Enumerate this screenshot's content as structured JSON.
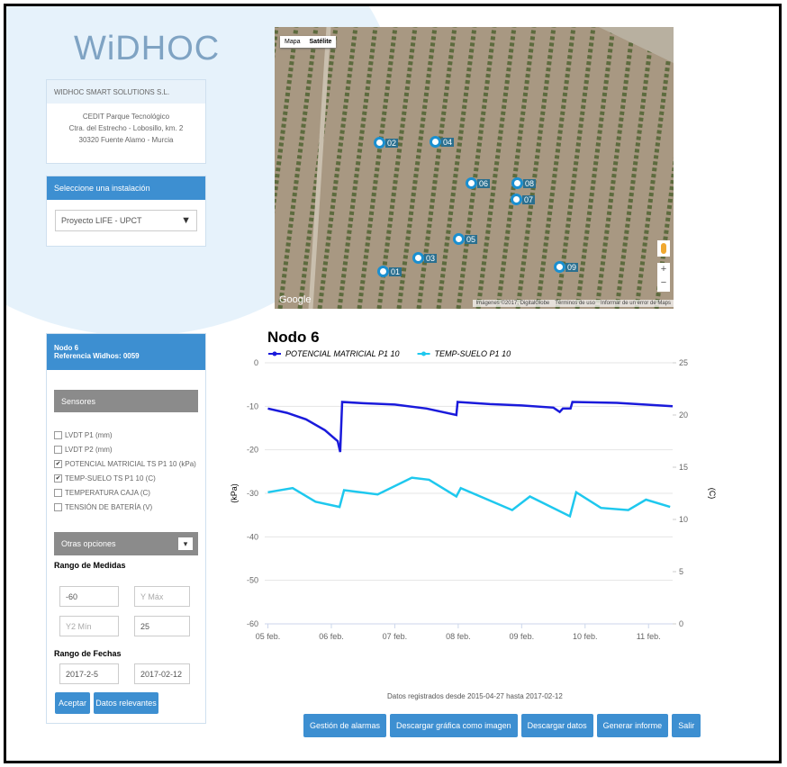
{
  "logo": "WiDHOC",
  "company": {
    "name": "WIDHOC SMART SOLUTIONS S.L.",
    "address": [
      "CEDIT Parque Tecnológico",
      "Ctra. del Estrecho - Lobosillo, km. 2",
      "30320 Fuente Alamo - Murcia"
    ]
  },
  "installation": {
    "header": "Seleccione una instalación",
    "selected": "Proyecto LIFE - UPCT"
  },
  "node": {
    "title": "Nodo 6",
    "reference": "Referencia Widhos: 0059",
    "sensors_header": "Sensores",
    "sensors": [
      {
        "label": "LVDT P1 (mm)",
        "checked": false
      },
      {
        "label": "LVDT P2 (mm)",
        "checked": false
      },
      {
        "label": "POTENCIAL MATRICIAL TS P1 10 (kPa)",
        "checked": true
      },
      {
        "label": "TEMP-SUELO TS P1 10 (C)",
        "checked": true
      },
      {
        "label": "TEMPERATURA CAJA (C)",
        "checked": false
      },
      {
        "label": "TENSIÓN DE BATERÍA (V)",
        "checked": false
      }
    ],
    "options_header": "Otras opciones",
    "range_label": "Rango de Medidas",
    "y_min": "-60",
    "y_max_placeholder": "Y Máx",
    "y2_min_placeholder": "Y2 Mín",
    "y2_max": "25",
    "dates_label": "Rango de Fechas",
    "date_from": "2017-2-5",
    "date_to": "2017-02-12",
    "buttons": [
      "Aceptar",
      "Datos relevantes"
    ]
  },
  "map": {
    "type_buttons": [
      "Mapa",
      "Satélite"
    ],
    "markers": [
      "02",
      "04",
      "06",
      "08",
      "07",
      "05",
      "03",
      "01",
      "09"
    ],
    "google": "Google",
    "attribution": "Imágenes ©2017, DigitalGlobe",
    "terms": "Términos de uso",
    "report": "Informar de un error de Maps",
    "zoom": [
      "+",
      "−"
    ]
  },
  "chart_data": {
    "type": "line",
    "title": "Nodo 6",
    "ylabel": "(kPa)",
    "y2label": "(C)",
    "xlim": [
      -0.05,
      6.38
    ],
    "xticks": [
      {
        "value": 0,
        "label": "05 feb."
      },
      {
        "value": 1,
        "label": "06 feb."
      },
      {
        "value": 2,
        "label": "07 feb."
      },
      {
        "value": 3,
        "label": "08 feb."
      },
      {
        "value": 4,
        "label": "09 feb."
      },
      {
        "value": 5,
        "label": "10 feb."
      },
      {
        "value": 6,
        "label": "11 feb."
      }
    ],
    "ylim": [
      -60,
      0
    ],
    "yticks": [
      0,
      -10,
      -20,
      -30,
      -40,
      -50,
      -60
    ],
    "y2lim": [
      0,
      25
    ],
    "y2ticks": [
      25,
      20,
      15,
      10,
      5,
      0
    ],
    "grid": true,
    "series": [
      {
        "name": "POTENCIAL MATRICIAL P1 10",
        "color": "#1a1adb",
        "x": [
          0,
          0.3,
          0.6,
          0.9,
          1.1,
          1.14,
          1.17,
          1.5,
          2,
          2.5,
          2.97,
          2.99,
          3.5,
          4,
          4.5,
          4.6,
          4.65,
          4.77,
          4.8,
          5.5,
          6.38
        ],
        "values": [
          -10.5,
          -11.5,
          -13,
          -15.5,
          -18,
          -20.5,
          -9,
          -9.3,
          -9.6,
          -10.5,
          -12,
          -9,
          -9.5,
          -9.8,
          -10.3,
          -11.3,
          -10.5,
          -10.5,
          -9,
          -9.2,
          -10
        ]
      },
      {
        "name": "TEMP-SUELO P1 10",
        "color": "#1ec8ee",
        "axis": "y2",
        "x": [
          0,
          0.39,
          0.75,
          1.13,
          1.2,
          1.73,
          2.27,
          2.54,
          2.97,
          3.04,
          3.85,
          4.13,
          4.76,
          4.86,
          5.25,
          5.68,
          5.96,
          6.34
        ],
        "values": [
          12.6,
          13,
          11.7,
          11.2,
          12.8,
          12.4,
          14,
          13.8,
          12.2,
          13,
          10.9,
          12.2,
          10.3,
          12.6,
          11.1,
          10.9,
          11.9,
          11.2
        ]
      }
    ]
  },
  "footer": {
    "note": "Datos registrados desde 2015-04-27 hasta 2017-02-12",
    "buttons": [
      "Gestión de alarmas",
      "Descargar gráfica como imagen",
      "Descargar datos",
      "Generar informe",
      "Salir"
    ]
  }
}
